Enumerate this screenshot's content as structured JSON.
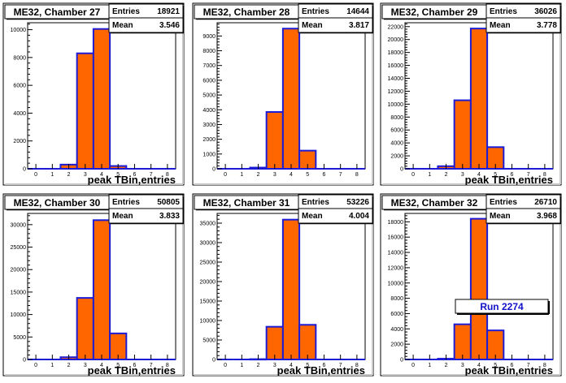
{
  "chart_data": [
    {
      "type": "bar",
      "title": "ME32, Chamber 27",
      "stats": {
        "entries_label": "Entries",
        "entries": "18921",
        "mean_label": "Mean",
        "mean": "3.546"
      },
      "xlabel": "peak TBin,entries",
      "xlim": [
        -0.5,
        8.5
      ],
      "x_ticks": [
        0,
        1,
        2,
        3,
        4,
        5,
        6,
        7,
        8
      ],
      "ylim": [
        0,
        10500
      ],
      "y_ticks": [
        0,
        2000,
        4000,
        6000,
        8000,
        10000
      ],
      "bins": [
        0,
        1,
        2,
        3,
        4,
        5,
        6,
        7,
        8
      ],
      "values": [
        0,
        0,
        300,
        8300,
        10050,
        200,
        0,
        0,
        0
      ]
    },
    {
      "type": "bar",
      "title": "ME32, Chamber 28",
      "stats": {
        "entries_label": "Entries",
        "entries": "14644",
        "mean_label": "Mean",
        "mean": "3.817"
      },
      "xlabel": "",
      "xlim": [
        -0.5,
        8.5
      ],
      "x_ticks": [
        0,
        1,
        2,
        3,
        4,
        5,
        6,
        7,
        8
      ],
      "ylim": [
        0,
        9900
      ],
      "y_ticks": [
        0,
        1000,
        2000,
        3000,
        4000,
        5000,
        6000,
        7000,
        8000,
        9000
      ],
      "bins": [
        0,
        1,
        2,
        3,
        4,
        5,
        6,
        7,
        8
      ],
      "values": [
        0,
        0,
        80,
        3850,
        9500,
        1230,
        0,
        0,
        0
      ]
    },
    {
      "type": "bar",
      "title": "ME32, Chamber 29",
      "stats": {
        "entries_label": "Entries",
        "entries": "36026",
        "mean_label": "Mean",
        "mean": "3.778"
      },
      "xlabel": "peak TBin,entries",
      "xlim": [
        -0.5,
        8.5
      ],
      "x_ticks": [
        0,
        1,
        2,
        3,
        4,
        5,
        6,
        7,
        8
      ],
      "ylim": [
        0,
        22600
      ],
      "y_ticks": [
        0,
        2000,
        4000,
        6000,
        8000,
        10000,
        12000,
        14000,
        16000,
        18000,
        20000,
        22000
      ],
      "bins": [
        0,
        1,
        2,
        3,
        4,
        5,
        6,
        7,
        8
      ],
      "values": [
        0,
        0,
        400,
        10600,
        21700,
        3350,
        0,
        0,
        0
      ]
    },
    {
      "type": "bar",
      "title": "ME32, Chamber 30",
      "stats": {
        "entries_label": "Entries",
        "entries": "50805",
        "mean_label": "Mean",
        "mean": "3.833"
      },
      "xlabel": "peak TBin,entries",
      "xlim": [
        -0.5,
        8.5
      ],
      "x_ticks": [
        0,
        1,
        2,
        3,
        4,
        5,
        6,
        7,
        8
      ],
      "ylim": [
        0,
        32500
      ],
      "y_ticks": [
        0,
        5000,
        10000,
        15000,
        20000,
        25000,
        30000
      ],
      "bins": [
        0,
        1,
        2,
        3,
        4,
        5,
        6,
        7,
        8
      ],
      "values": [
        0,
        0,
        500,
        13700,
        31000,
        5800,
        0,
        0,
        0
      ]
    },
    {
      "type": "bar",
      "title": "ME32, Chamber 31",
      "stats": {
        "entries_label": "Entries",
        "entries": "53226",
        "mean_label": "Mean",
        "mean": "4.004"
      },
      "xlabel": "peak TBin,entries",
      "xlim": [
        -0.5,
        8.5
      ],
      "x_ticks": [
        0,
        1,
        2,
        3,
        4,
        5,
        6,
        7,
        8
      ],
      "ylim": [
        0,
        37500
      ],
      "y_ticks": [
        0,
        5000,
        10000,
        15000,
        20000,
        25000,
        30000,
        35000
      ],
      "bins": [
        0,
        1,
        2,
        3,
        4,
        5,
        6,
        7,
        8
      ],
      "values": [
        0,
        0,
        80,
        8400,
        35900,
        8900,
        0,
        0,
        0
      ]
    },
    {
      "type": "bar",
      "title": "ME32, Chamber 32",
      "stats": {
        "entries_label": "Entries",
        "entries": "26710",
        "mean_label": "Mean",
        "mean": "3.968"
      },
      "xlabel": "peak TBin,entries",
      "xlim": [
        -0.5,
        8.5
      ],
      "x_ticks": [
        0,
        1,
        2,
        3,
        4,
        5,
        6,
        7,
        8
      ],
      "ylim": [
        0,
        19100
      ],
      "y_ticks": [
        0,
        2000,
        4000,
        6000,
        8000,
        10000,
        12000,
        14000,
        16000,
        18000
      ],
      "bins": [
        0,
        1,
        2,
        3,
        4,
        5,
        6,
        7,
        8
      ],
      "values": [
        0,
        0,
        100,
        4600,
        18400,
        3800,
        0,
        0,
        0
      ],
      "annotation": "Run 2274"
    }
  ],
  "colors": {
    "fill": "#ff6600",
    "line": "#1c1cd6",
    "annotation_text": "#1212c8",
    "frame": "#000000",
    "pad_shadow": "#c8c8c8"
  }
}
